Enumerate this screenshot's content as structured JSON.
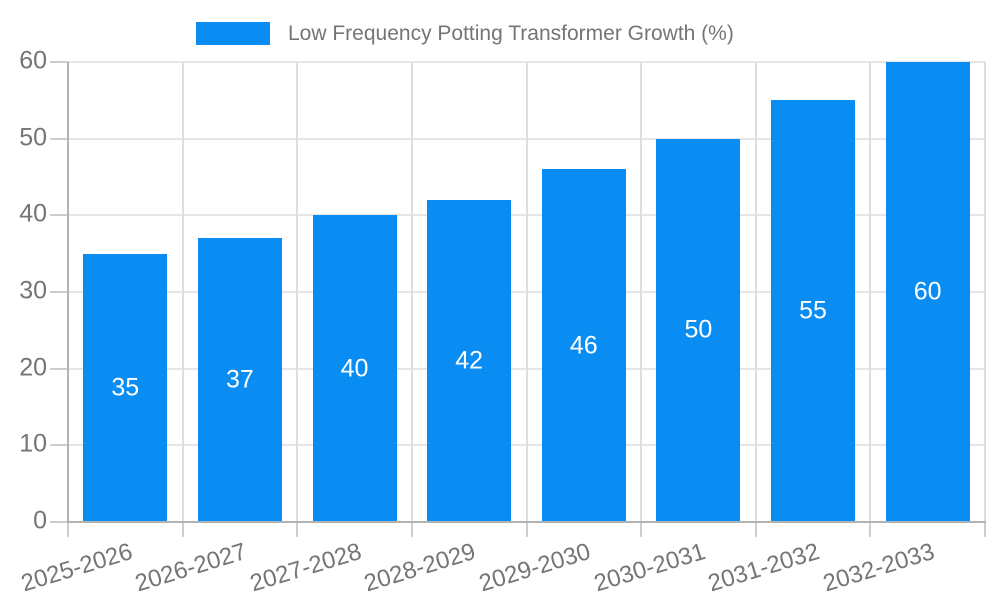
{
  "chart_data": {
    "type": "bar",
    "title": "Low Frequency Potting Transformer Growth (%)",
    "legend": {
      "position": "top",
      "entries": [
        "Low Frequency Potting Transformer Growth (%)"
      ]
    },
    "categories": [
      "2025-2026",
      "2026-2027",
      "2027-2028",
      "2028-2029",
      "2029-2030",
      "2030-2031",
      "2031-2032",
      "2032-2033"
    ],
    "values": [
      35,
      37,
      40,
      42,
      46,
      50,
      55,
      60
    ],
    "bar_labels": [
      "35",
      "37",
      "40",
      "42",
      "46",
      "50",
      "55",
      "60"
    ],
    "xlabel": "",
    "ylabel": "",
    "ylim": [
      0,
      60
    ],
    "yticks": [
      0,
      10,
      20,
      30,
      40,
      50,
      60
    ],
    "grid": true,
    "x_label_rotation_deg": -17,
    "colors": {
      "bar": "#0A8DF2",
      "bar_label": "#FFFFFF",
      "axis_text": "#757575",
      "axis_line": "#B3B3B3",
      "gridline_horizontal": "#E6E6E6",
      "gridline_vertical": "#DEDEDE",
      "tick": "#CCCCCC",
      "background": "#FFFFFF"
    }
  }
}
